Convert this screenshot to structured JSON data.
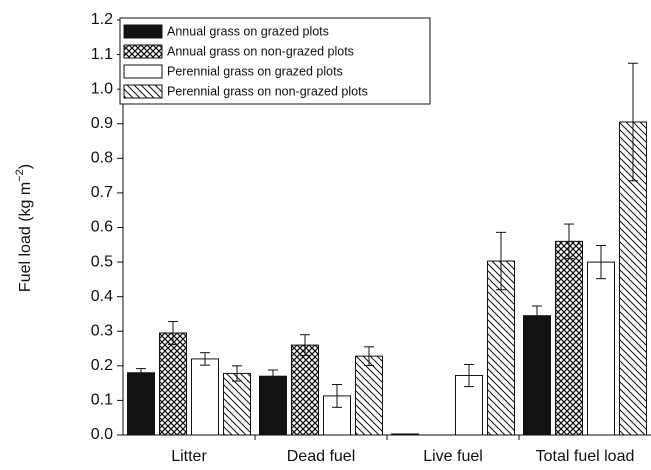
{
  "chart_data": {
    "type": "bar",
    "y_label": {
      "main": "Fuel load (kg m",
      "exponent": "−2",
      "close": ")"
    },
    "categories": [
      "Litter",
      "Dead fuel",
      "Live fuel",
      "Total fuel load"
    ],
    "series": [
      {
        "name": "Annual grass on grazed plots",
        "color": "#111111",
        "pattern": "solid",
        "values": [
          0.18,
          0.17,
          0.003,
          0.345
        ],
        "errors": [
          0.012,
          0.018,
          null,
          0.028
        ]
      },
      {
        "name": "Annual grass on non-grazed plots",
        "color": "#111111",
        "pattern": "crosshatch",
        "values": [
          0.295,
          0.26,
          null,
          0.56
        ],
        "errors": [
          0.033,
          0.03,
          null,
          0.05
        ]
      },
      {
        "name": "Perennial grass on grazed plots",
        "color": "#111111",
        "pattern": "none",
        "values": [
          0.22,
          0.113,
          0.172,
          0.5
        ],
        "errors": [
          0.018,
          0.033,
          0.032,
          0.048
        ]
      },
      {
        "name": "Perennial grass on non-grazed plots",
        "color": "#111111",
        "pattern": "diagonal",
        "values": [
          0.178,
          0.228,
          0.503,
          0.905
        ],
        "errors": [
          0.022,
          0.027,
          0.083,
          0.17
        ]
      }
    ],
    "ylim": [
      0,
      1.2
    ],
    "yticks": [
      {
        "value": 0,
        "label": "0.0"
      },
      0.1,
      0.2,
      0.3,
      0.4,
      0.5,
      0.6,
      0.7,
      0.8,
      0.9,
      {
        "value": 1,
        "label": "1.0"
      },
      1.1,
      1.2
    ],
    "legend": "upper left"
  }
}
